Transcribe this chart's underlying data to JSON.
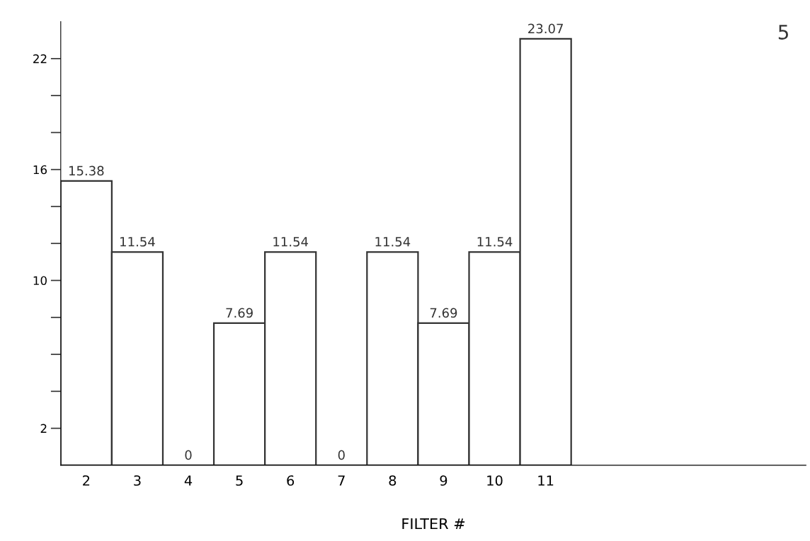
{
  "chart_data": {
    "type": "bar",
    "xlabel": "FILTER #",
    "categories": [
      "2",
      "3",
      "4",
      "5",
      "6",
      "7",
      "8",
      "9",
      "10",
      "11"
    ],
    "values": [
      15.38,
      11.54,
      0,
      7.69,
      11.54,
      0,
      11.54,
      7.69,
      11.54,
      23.07
    ],
    "color": "#333333",
    "data_labels": true,
    "ylim": [
      0,
      24
    ],
    "yticks": [
      2,
      {
        "value": 4,
        "label": null
      },
      {
        "value": 6,
        "label": null
      },
      {
        "value": 8,
        "label": null
      },
      10,
      {
        "value": 12,
        "label": null
      },
      {
        "value": 14,
        "label": null
      },
      16,
      {
        "value": 18,
        "label": null
      },
      {
        "value": 20,
        "label": null
      },
      22
    ],
    "grid": false,
    "annotations": [
      "5"
    ]
  }
}
